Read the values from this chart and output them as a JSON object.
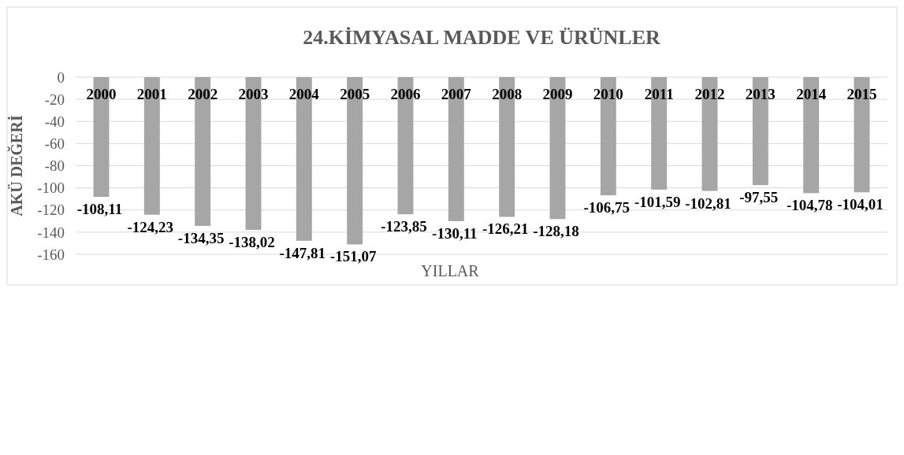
{
  "chart_data": {
    "type": "bar",
    "title": "24.KİMYASAL  MADDE VE ÜRÜNLER",
    "xlabel": "YILLAR",
    "ylabel": "AKÜ DEĞERİ",
    "categories": [
      "2000",
      "2001",
      "2002",
      "2003",
      "2004",
      "2005",
      "2006",
      "2007",
      "2008",
      "2009",
      "2010",
      "2011",
      "2012",
      "2013",
      "2014",
      "2015"
    ],
    "values": [
      -108.11,
      -124.23,
      -134.35,
      -138.02,
      -147.81,
      -151.07,
      -123.85,
      -130.11,
      -126.21,
      -128.18,
      -106.75,
      -101.59,
      -102.81,
      -97.55,
      -104.78,
      -104.01
    ],
    "value_labels": [
      "-108,11",
      "-124,23",
      "-134,35",
      "-138,02",
      "-147,81",
      "-151,07",
      "-123,85",
      "-130,11",
      "-126,21",
      "-128,18",
      "-106,75",
      "-101,59",
      "-102,81",
      "-97,55",
      "-104,78",
      "-104,01"
    ],
    "color": "#a6a6a6",
    "ylim": [
      -160,
      0
    ],
    "yticks": [
      0,
      -20,
      -40,
      -60,
      -80,
      -100,
      -120,
      -140,
      -160
    ],
    "grid": "y"
  }
}
